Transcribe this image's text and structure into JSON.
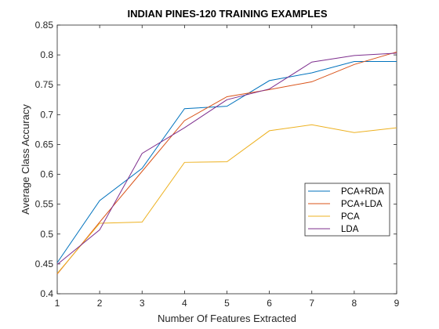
{
  "chart_data": {
    "type": "line",
    "title": "INDIAN PINES-120 TRAINING EXAMPLES",
    "xlabel": "Number Of Features Extracted",
    "ylabel": "Average Class Accuracy",
    "x": [
      1,
      2,
      3,
      4,
      5,
      6,
      7,
      8,
      9
    ],
    "xlim": [
      1,
      9
    ],
    "ylim": [
      0.4,
      0.85
    ],
    "xticks": [
      "1",
      "2",
      "3",
      "4",
      "5",
      "6",
      "7",
      "8",
      "9"
    ],
    "yticks": [
      "0.4",
      "0.45",
      "0.5",
      "0.55",
      "0.6",
      "0.65",
      "0.7",
      "0.75",
      "0.8",
      "0.85"
    ],
    "grid": false,
    "legend_position": "right-middle",
    "series": [
      {
        "name": "PCA+RDA",
        "color": "#0072BD",
        "values": [
          0.452,
          0.556,
          0.61,
          0.71,
          0.714,
          0.757,
          0.77,
          0.789,
          0.789
        ]
      },
      {
        "name": "PCA+LDA",
        "color": "#D95319",
        "values": [
          0.433,
          0.52,
          0.605,
          0.69,
          0.73,
          0.742,
          0.755,
          0.784,
          0.805
        ]
      },
      {
        "name": "PCA",
        "color": "#EDB120",
        "values": [
          0.434,
          0.518,
          0.52,
          0.62,
          0.621,
          0.673,
          0.683,
          0.67,
          0.678
        ]
      },
      {
        "name": "LDA",
        "color": "#7E2F8E",
        "values": [
          0.449,
          0.507,
          0.635,
          0.678,
          0.725,
          0.743,
          0.788,
          0.799,
          0.803
        ]
      }
    ]
  }
}
